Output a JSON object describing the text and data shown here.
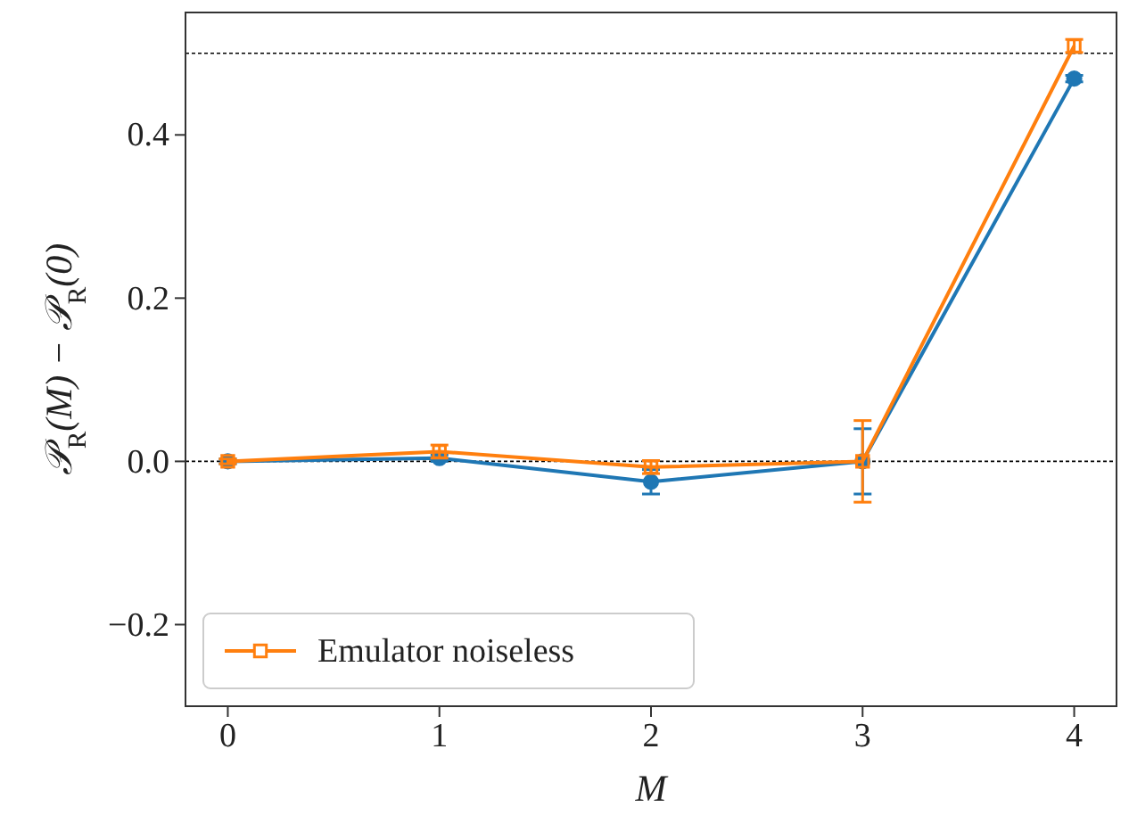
{
  "chart_data": {
    "type": "line",
    "xlabel": "M",
    "ylabel": "𝒫$_{R}$(M) − 𝒫$_{R}$(0)",
    "x": [
      0,
      1,
      2,
      3,
      4
    ],
    "series": [
      {
        "color": "#1f77b4",
        "marker": "circle",
        "values": [
          0,
          0.004,
          -0.025,
          0,
          0.469
        ],
        "errors": [
          0.003,
          0.004,
          0.015,
          0.04,
          0.004
        ]
      },
      {
        "name": "Emulator noiseless",
        "color": "#ff7f0e",
        "marker": "square",
        "values": [
          0,
          0.012,
          -0.007,
          0,
          0.509
        ],
        "errors": [
          0.003,
          0.008,
          0.008,
          0.05,
          0.008
        ]
      }
    ],
    "xlim": [
      -0.2,
      4.2
    ],
    "xticks": [
      0,
      1,
      2,
      3,
      4
    ],
    "ylim": [
      -0.3,
      0.55
    ],
    "yticks": [
      {
        "value": -0.2,
        "label": "−0.2"
      },
      {
        "value": 0,
        "label": "0.0"
      },
      {
        "value": 0.2,
        "label": "0.2"
      },
      {
        "value": 0.4,
        "label": "0.4"
      }
    ],
    "ref_lines": [
      {
        "axis": "y",
        "value": 0,
        "color": "#000000",
        "line_style": "dotted"
      },
      {
        "axis": "y",
        "value": 0.5,
        "color": "#000000",
        "line_style": "dotted"
      }
    ],
    "legend": "bottom left",
    "grid": false
  }
}
